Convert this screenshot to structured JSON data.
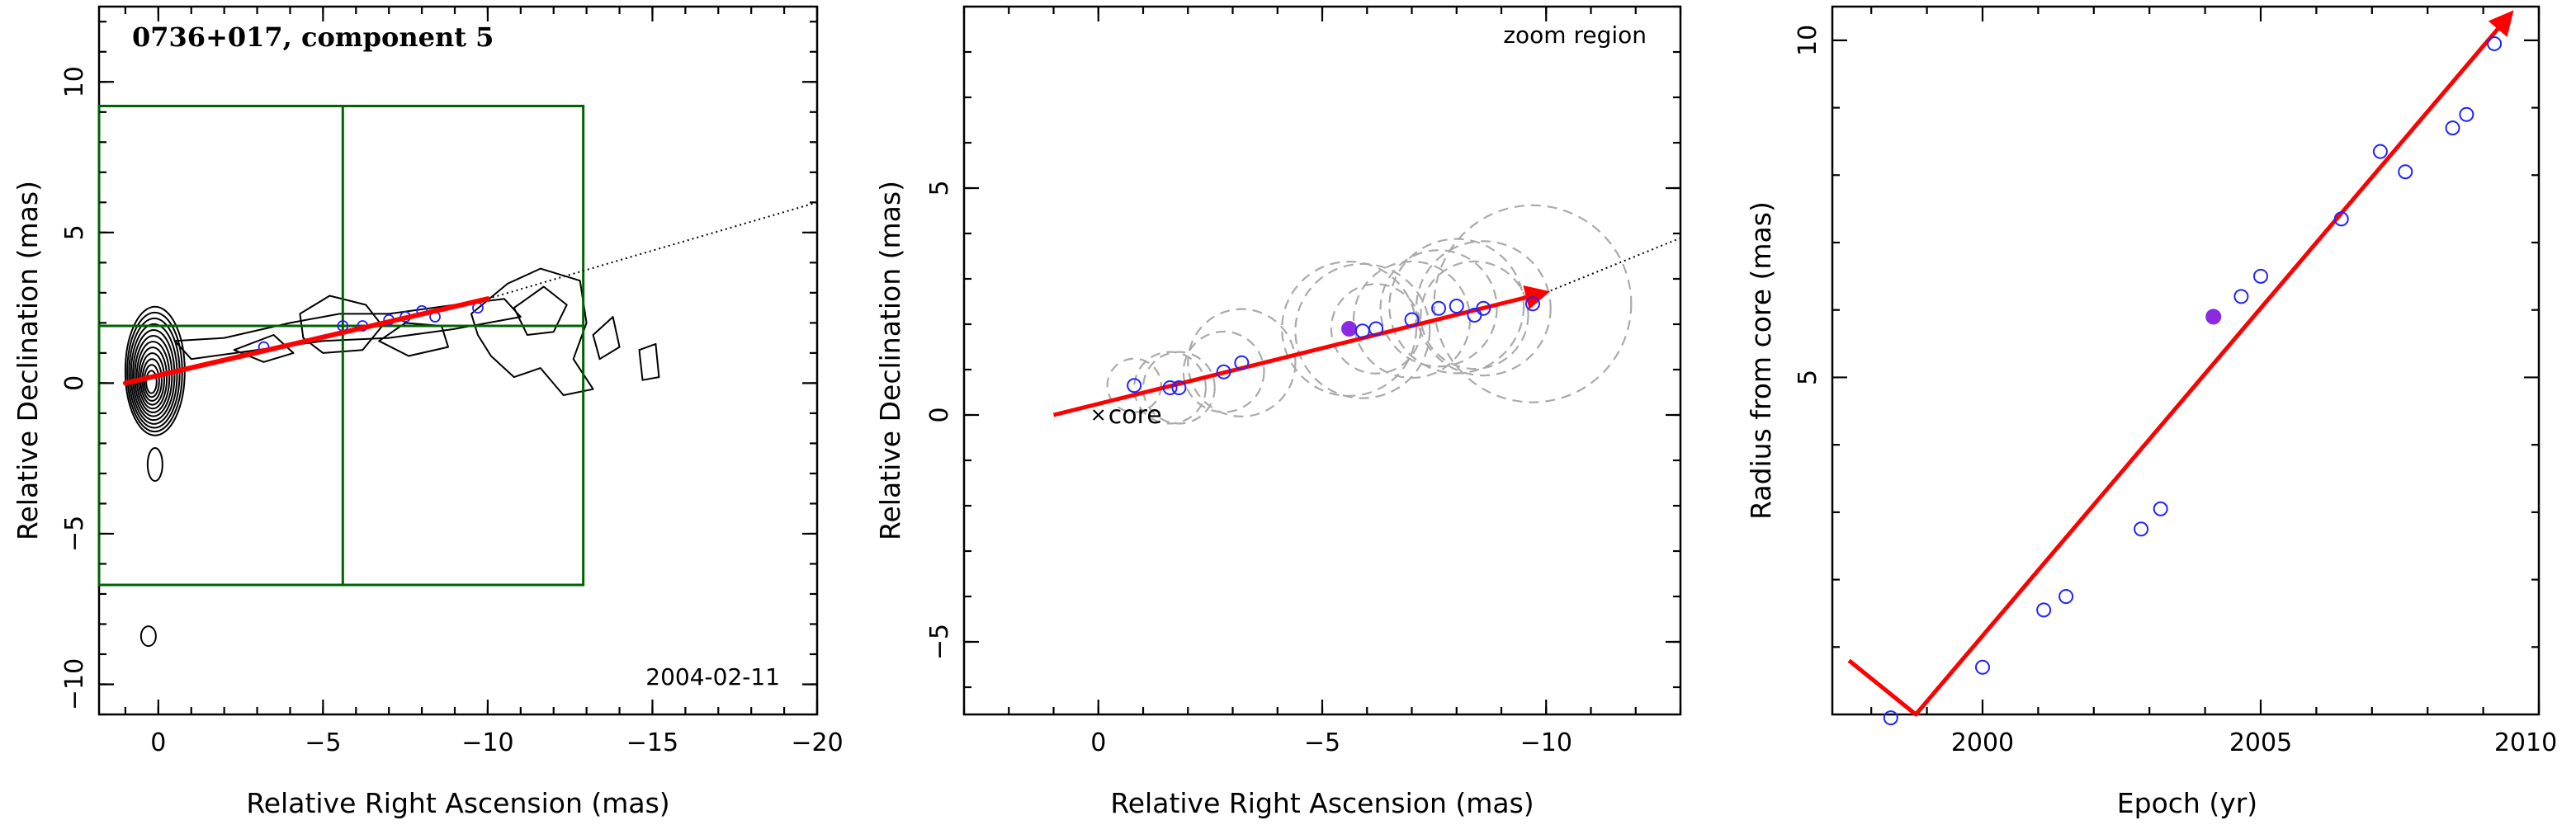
{
  "colors": {
    "arrow": "#ff0000",
    "points": "#2222ff",
    "highlight": "#8a2be2",
    "zoom_box": "#006400",
    "contour": "#000000",
    "circles": "#aaaaaa"
  },
  "chart_data": [
    {
      "type": "scatter",
      "panel": "contour map",
      "title": "0736+017, component 5",
      "annotation": "2004-02-11",
      "xlabel": "Relative Right Ascension (mas)",
      "ylabel": "Relative Declination (mas)",
      "xlim": [
        1.8,
        -20
      ],
      "ylim": [
        -11,
        12.5
      ],
      "xticks": [
        0,
        -5,
        -10,
        -15,
        -20
      ],
      "yticks": [
        -10,
        -5,
        0,
        5,
        10
      ],
      "zoom_box": {
        "x_range": [
          -12.9,
          1.8
        ],
        "y_range": [
          -6.7,
          9.2
        ],
        "crosshair": [
          -5.6,
          1.9
        ]
      },
      "trajectory": {
        "from": [
          1.0,
          0.0
        ],
        "to": [
          -10.0,
          2.8
        ]
      },
      "trajectory_extension": {
        "from": [
          -10.0,
          2.8
        ],
        "to": [
          -20.0,
          6.0
        ]
      },
      "component_points": [
        {
          "x": -3.2,
          "y": 1.2
        },
        {
          "x": -5.6,
          "y": 1.9
        },
        {
          "x": -6.2,
          "y": 1.9
        },
        {
          "x": -7.0,
          "y": 2.1
        },
        {
          "x": -7.5,
          "y": 2.2
        },
        {
          "x": -8.0,
          "y": 2.4
        },
        {
          "x": -8.4,
          "y": 2.2
        },
        {
          "x": -9.7,
          "y": 2.5
        }
      ]
    },
    {
      "type": "scatter",
      "panel": "zoom region",
      "annotation": "zoom region",
      "core_label": "core",
      "xlabel": "Relative Right Ascension (mas)",
      "ylabel": "Relative Declination (mas)",
      "xlim": [
        3.0,
        -13.0
      ],
      "ylim": [
        -6.6,
        9.0
      ],
      "xticks": [
        0,
        -5,
        -10
      ],
      "yticks": [
        -5,
        0,
        5
      ],
      "trajectory": {
        "from": [
          1.0,
          0.0
        ],
        "to": [
          -10.0,
          2.7
        ]
      },
      "trajectory_extension": {
        "from": [
          -10.0,
          2.7
        ],
        "to": [
          -13.0,
          3.9
        ]
      },
      "points": [
        {
          "x": -0.8,
          "y": 0.65,
          "size": 0.6
        },
        {
          "x": -1.6,
          "y": 0.6,
          "size": 0.8
        },
        {
          "x": -1.8,
          "y": 0.6,
          "size": 0.8
        },
        {
          "x": -2.8,
          "y": 0.95,
          "size": 0.9
        },
        {
          "x": -3.2,
          "y": 1.15,
          "size": 1.2
        },
        {
          "x": -5.6,
          "y": 1.9,
          "size": 1.5,
          "highlight": true
        },
        {
          "x": -5.9,
          "y": 1.85,
          "size": 1.5
        },
        {
          "x": -6.2,
          "y": 1.9,
          "size": 1.0
        },
        {
          "x": -7.0,
          "y": 2.1,
          "size": 1.3
        },
        {
          "x": -7.6,
          "y": 2.35,
          "size": 1.3
        },
        {
          "x": -8.0,
          "y": 2.4,
          "size": 1.5
        },
        {
          "x": -8.4,
          "y": 2.2,
          "size": 1.2
        },
        {
          "x": -8.6,
          "y": 2.35,
          "size": 1.5
        },
        {
          "x": -9.7,
          "y": 2.45,
          "size": 2.2
        }
      ]
    },
    {
      "type": "scatter",
      "panel": "radius vs epoch",
      "xlabel": "Epoch (yr)",
      "ylabel": "Radius from core (mas)",
      "xlim": [
        1997.3,
        2010.0
      ],
      "ylim": [
        0,
        10.5
      ],
      "xticks": [
        2000,
        2005,
        2010
      ],
      "yticks": [
        5,
        10
      ],
      "fit_curve": {
        "vertex_epoch": 1998.8,
        "vertex_radius": 0,
        "slope": 0.95,
        "start": [
          1997.6,
          0.8
        ],
        "end": [
          2009.5,
          10.4
        ]
      },
      "points": [
        {
          "x": 1998.35,
          "y": -0.05
        },
        {
          "x": 2000.0,
          "y": 0.7
        },
        {
          "x": 2001.1,
          "y": 1.55
        },
        {
          "x": 2001.5,
          "y": 1.75
        },
        {
          "x": 2002.85,
          "y": 2.75
        },
        {
          "x": 2003.2,
          "y": 3.05
        },
        {
          "x": 2004.15,
          "y": 5.9,
          "highlight": true
        },
        {
          "x": 2004.65,
          "y": 6.2
        },
        {
          "x": 2005.0,
          "y": 6.5
        },
        {
          "x": 2006.45,
          "y": 7.35
        },
        {
          "x": 2007.15,
          "y": 8.35
        },
        {
          "x": 2007.6,
          "y": 8.05
        },
        {
          "x": 2008.45,
          "y": 8.7
        },
        {
          "x": 2008.7,
          "y": 8.9
        },
        {
          "x": 2009.2,
          "y": 9.95
        }
      ]
    }
  ]
}
